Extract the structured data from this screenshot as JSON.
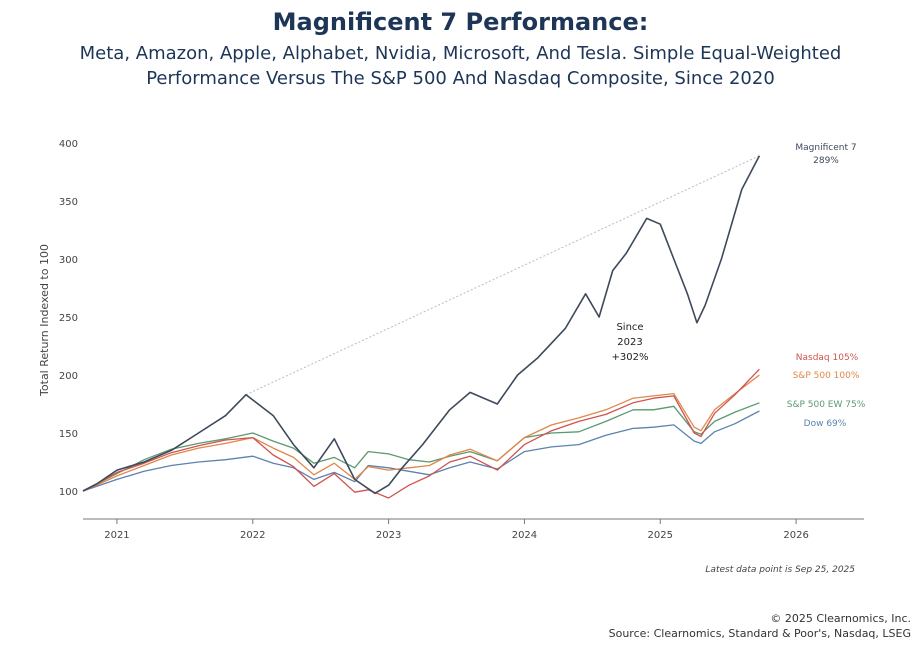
{
  "header": {
    "title": "Magnificent 7 Performance:",
    "subtitle_line1": "Meta, Amazon, Apple, Alphabet, Nvidia, Microsoft, And Tesla. Simple Equal-Weighted",
    "subtitle_line2": "Performance Versus The S&P 500 And Nasdaq Composite, Since 2020"
  },
  "footer": {
    "latest_note": "Latest data point is Sep 25, 2025",
    "copyright": "© 2025 Clearnomics, Inc.",
    "source": "Source: Clearnomics, Standard & Poor's, Nasdaq, LSEG"
  },
  "chart_data": {
    "type": "line",
    "ylabel": "Total Return Indexed to 100",
    "xlabel": "",
    "ylim": [
      90,
      400
    ],
    "xlim": [
      2020.75,
      2026.5
    ],
    "y_ticks": [
      100,
      150,
      200,
      250,
      300,
      350,
      400
    ],
    "x_ticks": [
      {
        "value": 2021,
        "label": "2021"
      },
      {
        "value": 2022,
        "label": "2022"
      },
      {
        "value": 2023,
        "label": "2023"
      },
      {
        "value": 2024,
        "label": "2024"
      },
      {
        "value": 2025,
        "label": "2025"
      },
      {
        "value": 2026,
        "label": "2026"
      }
    ],
    "grid": false,
    "series": [
      {
        "name": "Dow",
        "end_label": "Dow 69%",
        "color": "#5b82b0",
        "x": [
          2020.75,
          2020.85,
          2021.0,
          2021.2,
          2021.4,
          2021.6,
          2021.8,
          2022.0,
          2022.15,
          2022.3,
          2022.45,
          2022.6,
          2022.75,
          2022.85,
          2023.0,
          2023.15,
          2023.3,
          2023.45,
          2023.6,
          2023.8,
          2024.0,
          2024.2,
          2024.4,
          2024.6,
          2024.8,
          2024.95,
          2025.1,
          2025.25,
          2025.3,
          2025.4,
          2025.55,
          2025.73
        ],
        "y": [
          100,
          104,
          110,
          117,
          122,
          125,
          127,
          130,
          124,
          120,
          110,
          116,
          108,
          122,
          120,
          117,
          114,
          120,
          125,
          119,
          134,
          138,
          140,
          148,
          154,
          155,
          157,
          143,
          141,
          151,
          158,
          169
        ]
      },
      {
        "name": "S&P 500 EW",
        "end_label": "S&P 500 EW 75%",
        "color": "#5a9a6e",
        "x": [
          2020.75,
          2020.85,
          2021.0,
          2021.2,
          2021.4,
          2021.6,
          2021.8,
          2022.0,
          2022.15,
          2022.3,
          2022.45,
          2022.6,
          2022.75,
          2022.85,
          2023.0,
          2023.15,
          2023.3,
          2023.45,
          2023.6,
          2023.8,
          2024.0,
          2024.2,
          2024.4,
          2024.6,
          2024.8,
          2024.95,
          2025.1,
          2025.25,
          2025.3,
          2025.4,
          2025.55,
          2025.73
        ],
        "y": [
          100,
          106,
          115,
          127,
          136,
          141,
          145,
          150,
          143,
          137,
          124,
          129,
          120,
          134,
          132,
          127,
          125,
          130,
          134,
          126,
          146,
          150,
          151,
          160,
          170,
          170,
          173,
          151,
          149,
          160,
          168,
          176
        ]
      },
      {
        "name": "S&P 500",
        "end_label": "S&P 500 100%",
        "color": "#e0874a",
        "x": [
          2020.75,
          2020.85,
          2021.0,
          2021.2,
          2021.4,
          2021.6,
          2021.8,
          2022.0,
          2022.15,
          2022.3,
          2022.45,
          2022.6,
          2022.75,
          2022.85,
          2023.0,
          2023.15,
          2023.3,
          2023.45,
          2023.6,
          2023.8,
          2024.0,
          2024.2,
          2024.4,
          2024.6,
          2024.8,
          2024.95,
          2025.1,
          2025.25,
          2025.3,
          2025.4,
          2025.55,
          2025.73
        ],
        "y": [
          100,
          105,
          113,
          122,
          131,
          137,
          141,
          146,
          137,
          129,
          114,
          124,
          110,
          121,
          118,
          120,
          122,
          131,
          136,
          126,
          146,
          157,
          163,
          170,
          180,
          182,
          184,
          155,
          152,
          170,
          184,
          200
        ]
      },
      {
        "name": "Nasdaq",
        "end_label": "Nasdaq 105%",
        "color": "#d0534f",
        "x": [
          2020.75,
          2020.85,
          2021.0,
          2021.2,
          2021.4,
          2021.6,
          2021.8,
          2022.0,
          2022.15,
          2022.3,
          2022.45,
          2022.6,
          2022.75,
          2022.85,
          2023.0,
          2023.15,
          2023.3,
          2023.45,
          2023.6,
          2023.8,
          2024.0,
          2024.2,
          2024.4,
          2024.6,
          2024.8,
          2024.95,
          2025.1,
          2025.25,
          2025.3,
          2025.4,
          2025.55,
          2025.73
        ],
        "y": [
          100,
          106,
          116,
          124,
          133,
          139,
          144,
          146,
          131,
          121,
          104,
          115,
          99,
          101,
          94,
          105,
          113,
          125,
          130,
          118,
          140,
          152,
          160,
          166,
          176,
          180,
          182,
          150,
          147,
          167,
          183,
          205
        ]
      },
      {
        "name": "Magnificent 7",
        "end_label_line1": "Magnificent 7",
        "end_label_line2": "289%",
        "color": "#3d4a5c",
        "x": [
          2020.75,
          2020.85,
          2021.0,
          2021.2,
          2021.4,
          2021.6,
          2021.8,
          2021.95,
          2022.15,
          2022.3,
          2022.45,
          2022.6,
          2022.75,
          2022.9,
          2023.0,
          2023.1,
          2023.25,
          2023.45,
          2023.6,
          2023.8,
          2023.95,
          2024.1,
          2024.3,
          2024.45,
          2024.55,
          2024.65,
          2024.75,
          2024.9,
          2025.0,
          2025.1,
          2025.2,
          2025.27,
          2025.33,
          2025.45,
          2025.6,
          2025.73
        ],
        "y": [
          100,
          106,
          118,
          125,
          135,
          150,
          165,
          183,
          165,
          140,
          120,
          145,
          110,
          98,
          105,
          120,
          140,
          170,
          185,
          175,
          200,
          215,
          240,
          270,
          250,
          290,
          305,
          335,
          330,
          300,
          270,
          245,
          260,
          300,
          360,
          389
        ]
      }
    ],
    "trendline": {
      "x": [
        2021.95,
        2025.73
      ],
      "y": [
        183,
        389
      ],
      "color": "#b8bcc2"
    },
    "annotation": {
      "line1": "Since",
      "line2": "2023",
      "line3": "+302%"
    }
  }
}
